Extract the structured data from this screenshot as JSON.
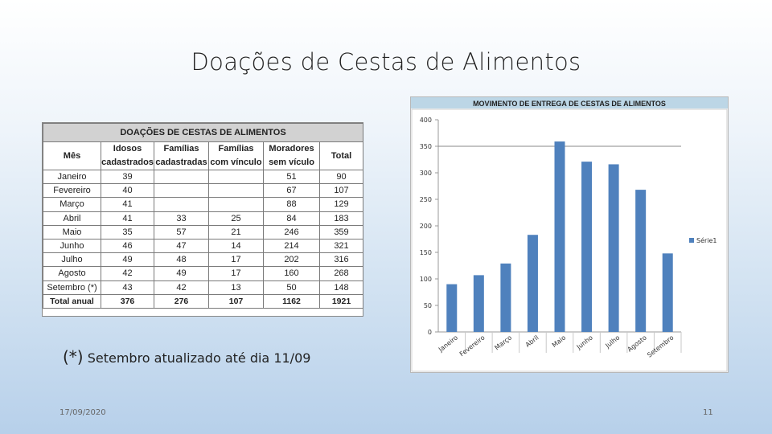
{
  "slide": {
    "title": "Doações de Cestas de Alimentos",
    "footnote_star": "(*)",
    "footnote_text": "Setembro atualizado até dia 11/09",
    "date": "17/09/2020",
    "page_number": "11"
  },
  "table": {
    "title": "DOAÇÕES DE CESTAS DE ALIMENTOS",
    "headers": {
      "mes": "Mês",
      "idosos": [
        "Idosos",
        "cadastrados"
      ],
      "familias_cad": [
        "Famílias",
        "cadastradas"
      ],
      "familias_vinc": [
        "Famílias",
        "com vínculo"
      ],
      "moradores": [
        "Moradores",
        "sem vículo"
      ],
      "total": "Total"
    },
    "rows": [
      [
        "Janeiro",
        "39",
        "",
        "",
        "51",
        "90"
      ],
      [
        "Fevereiro",
        "40",
        "",
        "",
        "67",
        "107"
      ],
      [
        "Março",
        "41",
        "",
        "",
        "88",
        "129"
      ],
      [
        "Abril",
        "41",
        "33",
        "25",
        "84",
        "183"
      ],
      [
        "Maio",
        "35",
        "57",
        "21",
        "246",
        "359"
      ],
      [
        "Junho",
        "46",
        "47",
        "14",
        "214",
        "321"
      ],
      [
        "Julho",
        "49",
        "48",
        "17",
        "202",
        "316"
      ],
      [
        "Agosto",
        "42",
        "49",
        "17",
        "160",
        "268"
      ],
      [
        "Setembro (*)",
        "43",
        "42",
        "13",
        "50",
        "148"
      ]
    ],
    "total_row": [
      "Total anual",
      "376",
      "276",
      "107",
      "1162",
      "1921"
    ]
  },
  "chart_data": {
    "type": "bar",
    "title": "MOVIMENTO DE ENTREGA DE CESTAS DE ALIMENTOS",
    "categories": [
      "Janeiro",
      "Fevereiro",
      "Março",
      "Abril",
      "Maio",
      "Junho",
      "Julho",
      "Agosto",
      "Setembro"
    ],
    "series": [
      {
        "name": "Série1",
        "values": [
          90,
          107,
          129,
          183,
          359,
          321,
          316,
          268,
          148
        ],
        "color": "#4f81bd"
      }
    ],
    "ylim": [
      0,
      400
    ],
    "yticks": [
      0,
      50,
      100,
      150,
      200,
      250,
      300,
      350,
      400
    ],
    "grid": "horizontal line at 350",
    "legend": "right",
    "xlabel": "",
    "ylabel": ""
  },
  "colors": {
    "bar": "#4f81bd",
    "chart_title_bg": "#bcd6e6",
    "table_title_bg": "#d2d2d2"
  }
}
